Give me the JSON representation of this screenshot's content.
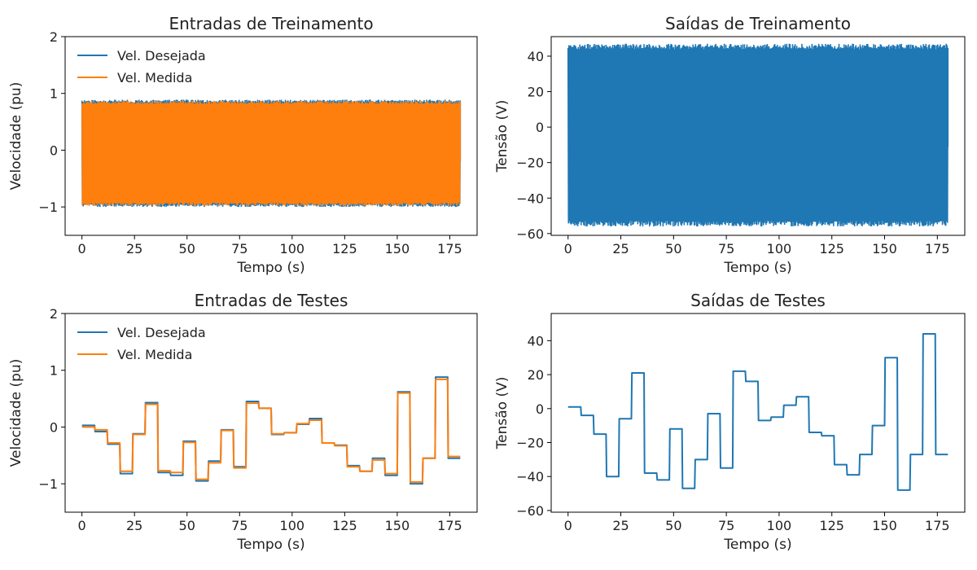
{
  "colors": {
    "blue": "#1f77b4",
    "orange": "#ff7f0e"
  },
  "chart_data": [
    {
      "type": "line",
      "title": "Entradas de Treinamento",
      "xlabel": "Tempo (s)",
      "ylabel": "Velocidade (pu)",
      "xlim": [
        -8,
        188
      ],
      "ylim": [
        -1.5,
        2
      ],
      "xticks": [
        0,
        25,
        50,
        75,
        100,
        125,
        150,
        175
      ],
      "yticks": [
        -1,
        0,
        1,
        2
      ],
      "legend": "top-left",
      "dense": true,
      "series": [
        {
          "name": "Vel. Desejada",
          "color": "#1f77b4",
          "range": [
            -1.0,
            0.89
          ],
          "x": [
            0,
            180
          ]
        },
        {
          "name": "Vel. Medida",
          "color": "#ff7f0e",
          "range": [
            -0.98,
            0.87
          ],
          "x": [
            0,
            180
          ]
        }
      ]
    },
    {
      "type": "line",
      "title": "Saídas de Treinamento",
      "xlabel": "Tempo (s)",
      "ylabel": "Tensão (V)",
      "xlim": [
        -8,
        188
      ],
      "ylim": [
        -61,
        51
      ],
      "xticks": [
        0,
        25,
        50,
        75,
        100,
        125,
        150,
        175
      ],
      "yticks": [
        -60,
        -40,
        -20,
        0,
        20,
        40
      ],
      "dense": true,
      "series": [
        {
          "color": "#1f77b4",
          "range": [
            -56,
            47
          ],
          "x": [
            0,
            180
          ]
        }
      ]
    },
    {
      "type": "line",
      "title": "Entradas de Testes",
      "xlabel": "Tempo (s)",
      "ylabel": "Velocidade (pu)",
      "xlim": [
        -8,
        188
      ],
      "ylim": [
        -1.5,
        2
      ],
      "xticks": [
        0,
        25,
        50,
        75,
        100,
        125,
        150,
        175
      ],
      "yticks": [
        -1,
        0,
        1,
        2
      ],
      "legend": "top-left",
      "series": [
        {
          "name": "Vel. Desejada",
          "color": "#1f77b4",
          "steps": [
            [
              0,
              0.03
            ],
            [
              6,
              -0.08
            ],
            [
              12,
              -0.3
            ],
            [
              18,
              -0.82
            ],
            [
              24,
              -0.12
            ],
            [
              30,
              0.43
            ],
            [
              36,
              -0.8
            ],
            [
              42,
              -0.85
            ],
            [
              48,
              -0.25
            ],
            [
              54,
              -0.95
            ],
            [
              60,
              -0.6
            ],
            [
              66,
              -0.05
            ],
            [
              72,
              -0.7
            ],
            [
              78,
              0.45
            ],
            [
              84,
              0.33
            ],
            [
              90,
              -0.13
            ],
            [
              96,
              -0.1
            ],
            [
              102,
              0.05
            ],
            [
              108,
              0.15
            ],
            [
              114,
              -0.28
            ],
            [
              120,
              -0.32
            ],
            [
              126,
              -0.68
            ],
            [
              132,
              -0.78
            ],
            [
              138,
              -0.55
            ],
            [
              144,
              -0.85
            ],
            [
              150,
              0.62
            ],
            [
              156,
              -1.0
            ],
            [
              162,
              -0.55
            ],
            [
              168,
              0.88
            ],
            [
              174,
              -0.55
            ]
          ],
          "end": 180
        },
        {
          "name": "Vel. Medida",
          "color": "#ff7f0e",
          "steps": [
            [
              0,
              0.0
            ],
            [
              6,
              -0.05
            ],
            [
              12,
              -0.28
            ],
            [
              18,
              -0.78
            ],
            [
              24,
              -0.13
            ],
            [
              30,
              0.4
            ],
            [
              36,
              -0.77
            ],
            [
              42,
              -0.8
            ],
            [
              48,
              -0.27
            ],
            [
              54,
              -0.92
            ],
            [
              60,
              -0.63
            ],
            [
              66,
              -0.06
            ],
            [
              72,
              -0.72
            ],
            [
              78,
              0.42
            ],
            [
              84,
              0.33
            ],
            [
              90,
              -0.12
            ],
            [
              96,
              -0.1
            ],
            [
              102,
              0.06
            ],
            [
              108,
              0.12
            ],
            [
              114,
              -0.28
            ],
            [
              120,
              -0.33
            ],
            [
              126,
              -0.7
            ],
            [
              132,
              -0.78
            ],
            [
              138,
              -0.58
            ],
            [
              144,
              -0.82
            ],
            [
              150,
              0.6
            ],
            [
              156,
              -0.97
            ],
            [
              162,
              -0.55
            ],
            [
              168,
              0.84
            ],
            [
              174,
              -0.52
            ]
          ],
          "end": 180
        }
      ]
    },
    {
      "type": "line",
      "title": "Saídas de Testes",
      "xlabel": "Tempo (s)",
      "ylabel": "Tensão (V)",
      "xlim": [
        -8,
        188
      ],
      "ylim": [
        -61,
        56
      ],
      "xticks": [
        0,
        25,
        50,
        75,
        100,
        125,
        150,
        175
      ],
      "yticks": [
        -60,
        -40,
        -20,
        0,
        20,
        40
      ],
      "series": [
        {
          "color": "#1f77b4",
          "steps": [
            [
              0,
              1
            ],
            [
              6,
              -4
            ],
            [
              12,
              -15
            ],
            [
              18,
              -40
            ],
            [
              24,
              -6
            ],
            [
              30,
              21
            ],
            [
              36,
              -38
            ],
            [
              42,
              -42
            ],
            [
              48,
              -12
            ],
            [
              54,
              -47
            ],
            [
              60,
              -30
            ],
            [
              66,
              -3
            ],
            [
              72,
              -35
            ],
            [
              78,
              22
            ],
            [
              84,
              16
            ],
            [
              90,
              -7
            ],
            [
              96,
              -5
            ],
            [
              102,
              2
            ],
            [
              108,
              7
            ],
            [
              114,
              -14
            ],
            [
              120,
              -16
            ],
            [
              126,
              -33
            ],
            [
              132,
              -39
            ],
            [
              138,
              -27
            ],
            [
              144,
              -10
            ],
            [
              150,
              30
            ],
            [
              156,
              -48
            ],
            [
              162,
              -27
            ],
            [
              168,
              44
            ],
            [
              174,
              -27
            ]
          ],
          "end": 180
        }
      ]
    }
  ]
}
